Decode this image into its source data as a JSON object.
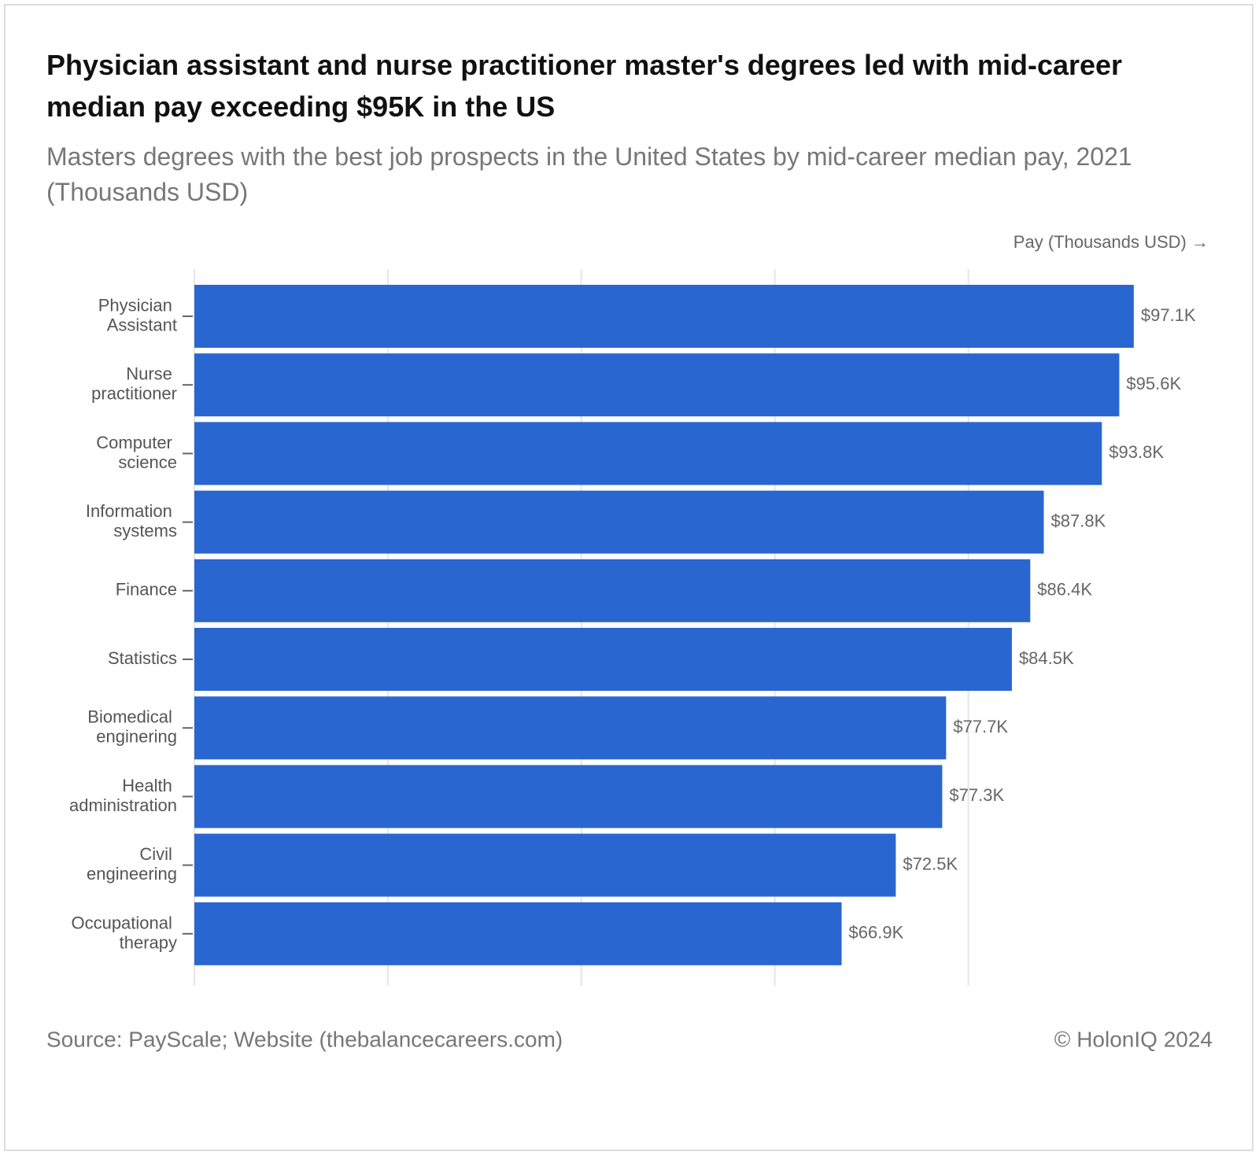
{
  "chart_data": {
    "type": "bar",
    "orientation": "horizontal",
    "title": "Physician assistant and nurse practitioner master's degrees led with mid-career median pay exceeding $95K in the US",
    "subtitle": "Masters degrees with the best job prospects in the United States by mid-career median pay, 2021 (Thousands USD)",
    "x_axis_label": "Pay (Thousands USD) →",
    "categories": [
      "Physician Assistant",
      "Nurse practitioner",
      "Computer science",
      "Information systems",
      "Finance",
      "Statistics",
      "Biomedical enginering",
      "Health administration",
      "Civil engineering",
      "Occupational therapy"
    ],
    "values": [
      97.1,
      95.6,
      93.8,
      87.8,
      86.4,
      84.5,
      77.7,
      77.3,
      72.5,
      66.9
    ],
    "value_labels": [
      "$97.1K",
      "$95.6K",
      "$93.8K",
      "$87.8K",
      "$86.4K",
      "$84.5K",
      "$77.7K",
      "$77.3K",
      "$72.5K",
      "$66.9K"
    ],
    "color": "#2a66d0",
    "xlim": [
      0,
      105
    ],
    "xticks": [
      0,
      20,
      40,
      60,
      80
    ],
    "grid": true,
    "source": "Source: PayScale; Website (thebalancecareers.com)",
    "credit": "© HolonIQ 2024"
  }
}
